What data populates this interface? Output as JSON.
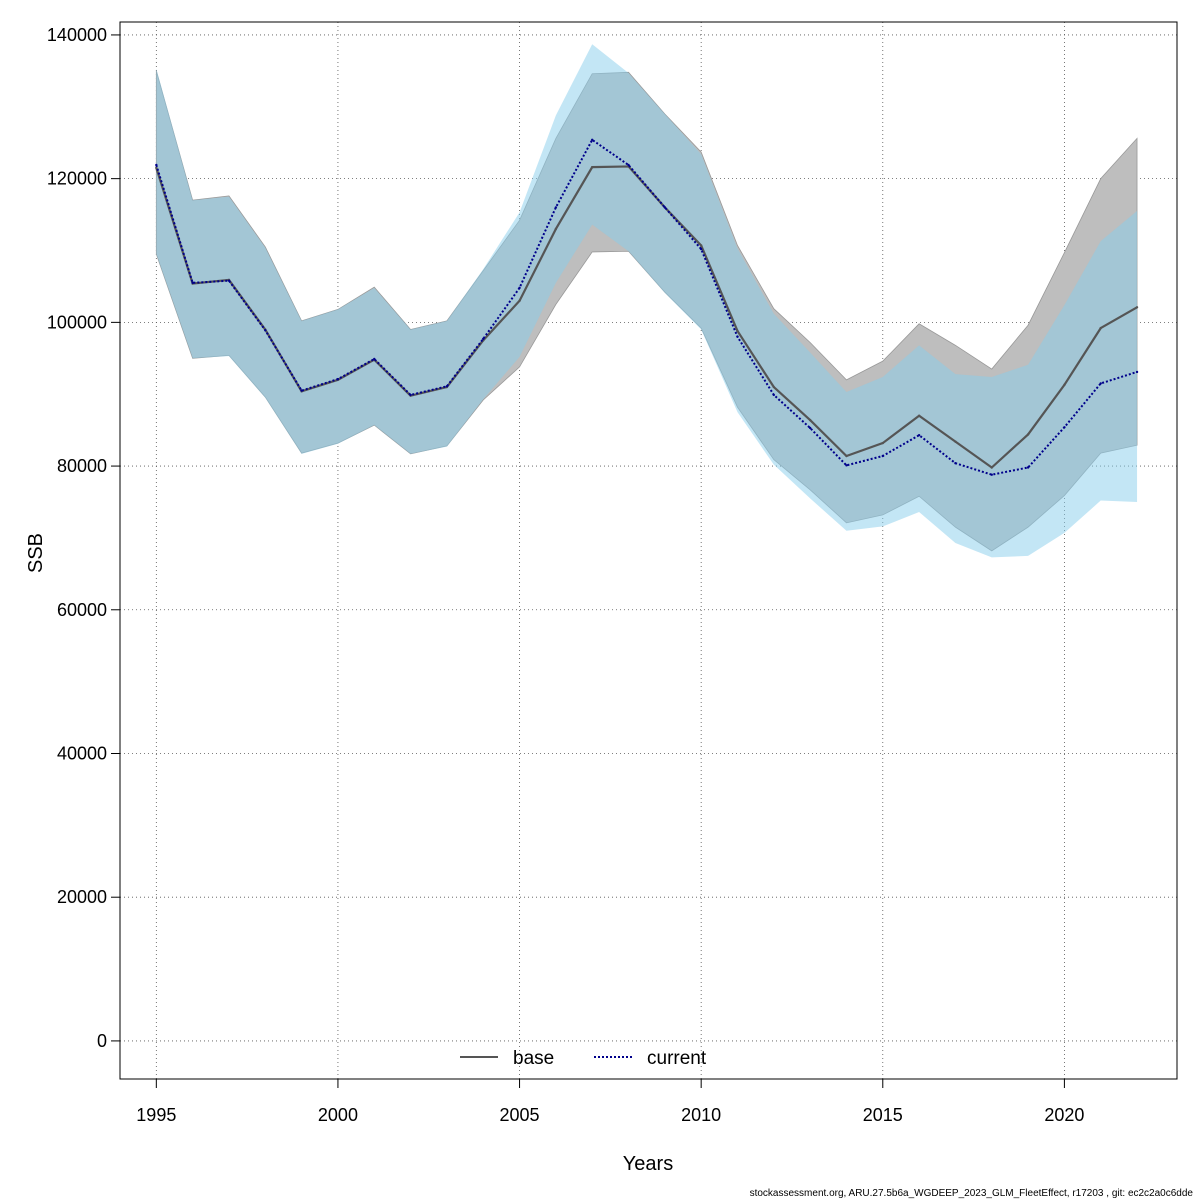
{
  "chart_data": {
    "type": "area",
    "xlabel": "Years",
    "ylabel": "SSB",
    "xlim": [
      1994,
      2023.1
    ],
    "ylim": [
      -5300,
      141800
    ],
    "x_ticks": [
      1995,
      2000,
      2005,
      2010,
      2015,
      2020
    ],
    "y_ticks": [
      0,
      20000,
      40000,
      60000,
      80000,
      100000,
      120000,
      140000
    ],
    "x_tick_labels": [
      "1995",
      "2000",
      "2005",
      "2010",
      "2015",
      "2020"
    ],
    "y_tick_labels": [
      "0",
      "20000",
      "40000",
      "60000",
      "80000",
      "100000",
      "120000",
      "140000"
    ],
    "grid": true,
    "legend_position": "bottom-center",
    "x": [
      1995,
      1996,
      1997,
      1998,
      1999,
      2000,
      2001,
      2002,
      2003,
      2004,
      2005,
      2006,
      2007,
      2008,
      2009,
      2010,
      2011,
      2012,
      2013,
      2014,
      2015,
      2016,
      2017,
      2018,
      2019,
      2020,
      2021,
      2022
    ],
    "series": [
      {
        "name": "base",
        "line_style": "solid",
        "line_color": "#555555",
        "band_color": "#bebebe",
        "values": [
          121500,
          105400,
          105900,
          99000,
          90400,
          92000,
          94800,
          89800,
          91000,
          97500,
          103000,
          113000,
          121600,
          121700,
          116000,
          110700,
          98800,
          91000,
          86400,
          81400,
          83200,
          87000,
          83400,
          79800,
          84400,
          91300,
          99200,
          102100
        ],
        "upper": [
          135000,
          117000,
          117600,
          110500,
          100200,
          101800,
          104900,
          99000,
          100200,
          107200,
          114200,
          125600,
          134600,
          134800,
          129000,
          123700,
          110700,
          101900,
          97200,
          92000,
          94600,
          99800,
          96800,
          93500,
          99600,
          109700,
          120000,
          125600
        ],
        "lower": [
          109500,
          95000,
          95400,
          89600,
          81800,
          83200,
          85700,
          81700,
          82800,
          89200,
          93800,
          102500,
          109800,
          109900,
          104200,
          99200,
          88200,
          80900,
          76700,
          72100,
          73200,
          75800,
          71500,
          68200,
          71500,
          75900,
          81800,
          82900
        ]
      },
      {
        "name": "current",
        "line_style": "dotted",
        "line_color": "#00008b",
        "band_color": "#87ceeb",
        "values": [
          121900,
          105500,
          105800,
          98900,
          90500,
          92100,
          94900,
          89900,
          91100,
          97700,
          104800,
          116000,
          125400,
          121900,
          116000,
          110200,
          98000,
          89900,
          85300,
          80100,
          81400,
          84300,
          80400,
          78800,
          79800,
          85400,
          91500,
          93100
        ],
        "upper": [
          135300,
          117000,
          117500,
          110400,
          100200,
          101800,
          104800,
          99000,
          100200,
          107400,
          115300,
          128800,
          138700,
          134700,
          129000,
          123400,
          110300,
          101200,
          95800,
          90300,
          92400,
          96800,
          92800,
          92400,
          94100,
          102400,
          111300,
          115500
        ],
        "lower": [
          109500,
          95000,
          95300,
          89500,
          81700,
          83100,
          85700,
          81700,
          82700,
          89300,
          95200,
          105500,
          113600,
          109900,
          104100,
          99000,
          87500,
          80200,
          75500,
          71000,
          71600,
          73600,
          69300,
          67300,
          67500,
          70700,
          75200,
          75000
        ]
      }
    ]
  },
  "footer": "stockassessment.org, ARU.27.5b6a_WGDEEP_2023_GLM_FleetEffect, r17203 , git: ec2c2a0c6dde"
}
